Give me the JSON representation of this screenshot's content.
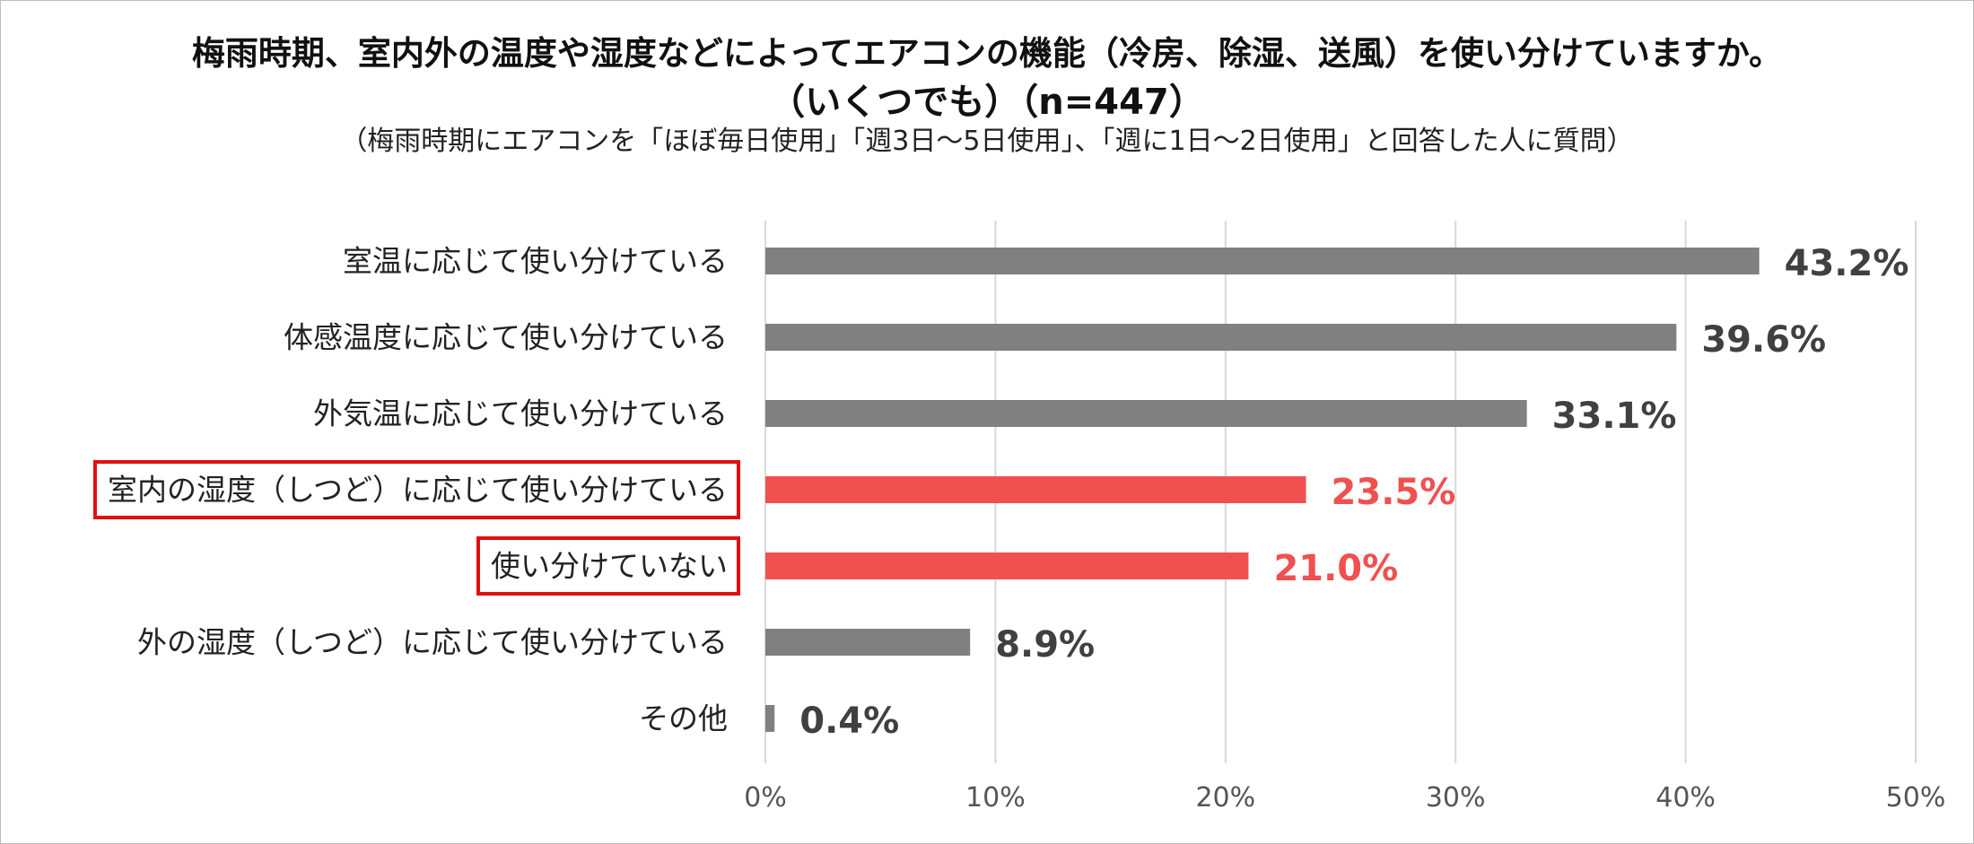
{
  "chart_data": {
    "type": "bar",
    "orientation": "horizontal",
    "title": "梅雨時期、室内外の温度や湿度などによってエアコンの機能（冷房、除湿、送風）を使い分けていますか。",
    "title_line2": "（いくつでも）（n=447）",
    "subtitle": "（梅雨時期にエアコンを「ほぼ毎日使用」「週3日～5日使用」、「週に1日～2日使用」と回答した人に質問）",
    "categories": [
      "室温に応じて使い分けている",
      "体感温度に応じて使い分けている",
      "外気温に応じて使い分けている",
      "室内の湿度（しつど）に応じて使い分けている",
      "使い分けていない",
      "外の湿度（しつど）に応じて使い分けている",
      "その他"
    ],
    "values": [
      43.2,
      39.6,
      33.1,
      23.5,
      21.0,
      8.9,
      0.4
    ],
    "value_labels": [
      "43.2%",
      "39.6%",
      "33.1%",
      "23.5%",
      "21.0%",
      "8.9%",
      "0.4%"
    ],
    "highlighted": [
      false,
      false,
      false,
      true,
      true,
      false,
      false
    ],
    "x_ticks": [
      "0%",
      "10%",
      "20%",
      "30%",
      "40%",
      "50%"
    ],
    "xlim": [
      0,
      50
    ],
    "grid": true,
    "colors": {
      "bar": "#808080",
      "highlight_bar": "#f05050",
      "value_text": "#404040",
      "highlight_value_text": "#f05050",
      "highlight_box": "#e01010",
      "gridline": "#d9d9d9"
    }
  }
}
